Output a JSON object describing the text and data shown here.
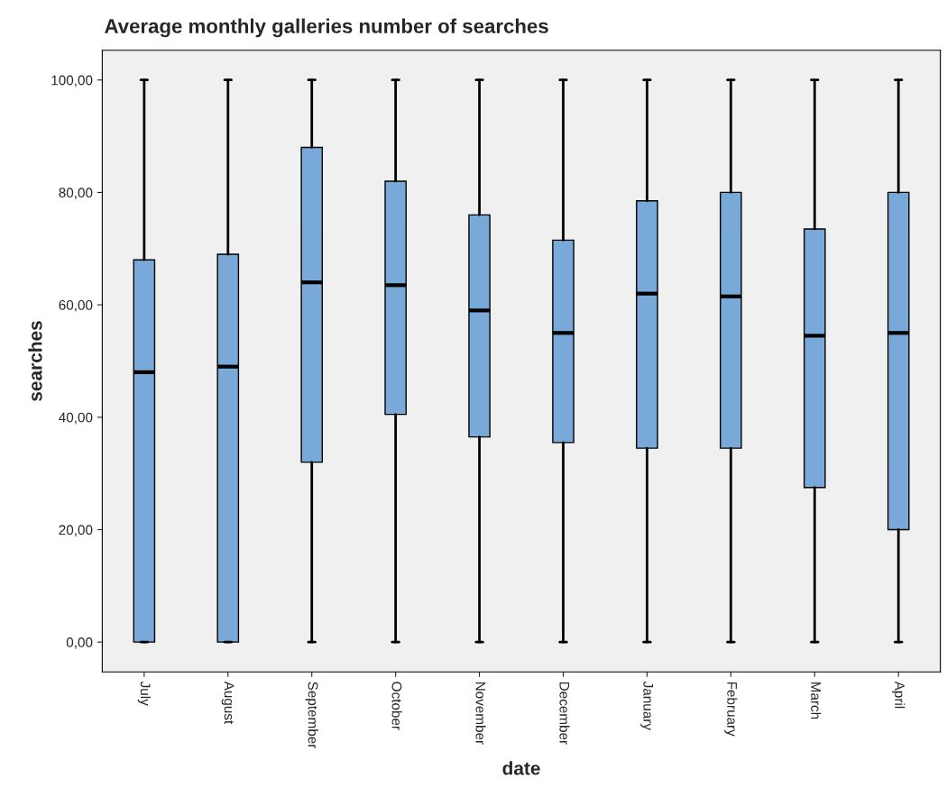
{
  "chart_data": {
    "type": "box",
    "title": "Average monthly galleries number of searches",
    "xlabel": "date",
    "ylabel": "searches",
    "categories": [
      "July",
      "August",
      "September",
      "October",
      "November",
      "December",
      "January",
      "February",
      "March",
      "April"
    ],
    "boxes": [
      {
        "low": 0,
        "q1": 0,
        "median": 48,
        "q3": 68,
        "high": 100
      },
      {
        "low": 0,
        "q1": 0,
        "median": 49,
        "q3": 69,
        "high": 100
      },
      {
        "low": 0,
        "q1": 32,
        "median": 64,
        "q3": 88,
        "high": 100
      },
      {
        "low": 0,
        "q1": 40.5,
        "median": 63.5,
        "q3": 82,
        "high": 100
      },
      {
        "low": 0,
        "q1": 36.5,
        "median": 59,
        "q3": 76,
        "high": 100
      },
      {
        "low": 0,
        "q1": 35.5,
        "median": 55,
        "q3": 71.5,
        "high": 100
      },
      {
        "low": 0,
        "q1": 34.5,
        "median": 62,
        "q3": 78.5,
        "high": 100
      },
      {
        "low": 0,
        "q1": 34.5,
        "median": 61.5,
        "q3": 80,
        "high": 100
      },
      {
        "low": 0,
        "q1": 27.5,
        "median": 54.5,
        "q3": 73.5,
        "high": 100
      },
      {
        "low": 0,
        "q1": 20,
        "median": 55,
        "q3": 80,
        "high": 100
      }
    ],
    "color": "#79a9d8",
    "ylim": [
      -5.3,
      105.3
    ],
    "yticks": [
      {
        "value": 0,
        "label": "0,00"
      },
      {
        "value": 20,
        "label": "20,00"
      },
      {
        "value": 40,
        "label": "40,00"
      },
      {
        "value": 60,
        "label": "60,00"
      },
      {
        "value": 80,
        "label": "80,00"
      },
      {
        "value": 100,
        "label": "100,00"
      }
    ],
    "grid": false
  }
}
